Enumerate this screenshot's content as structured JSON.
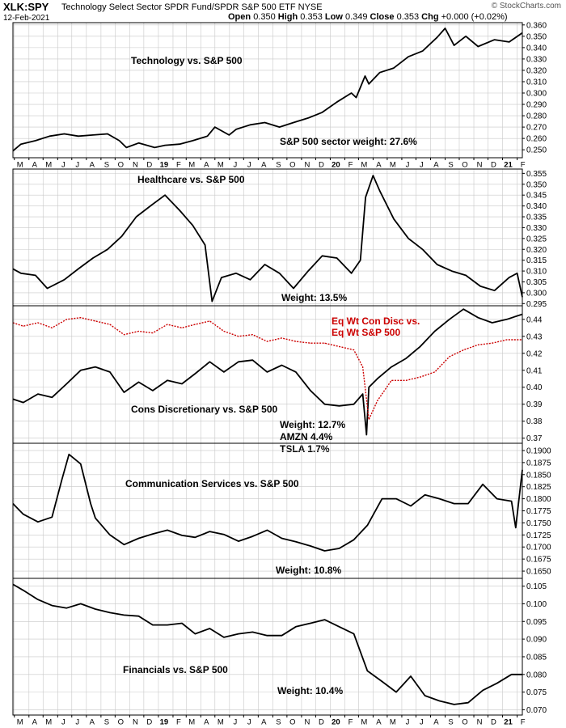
{
  "header": {
    "symbol": "XLK:SPY",
    "description": "Technology Select Sector SPDR Fund/SPDR S&P 500 ETF NYSE",
    "date": "12-Feb-2021",
    "open_label": "Open",
    "open": "0.350",
    "high_label": "High",
    "high": "0.353",
    "low_label": "Low",
    "low": "0.349",
    "close_label": "Close",
    "close": "0.353",
    "chg_label": "Chg",
    "chg": "+0.000 (+0.02%)",
    "brand": "© StockCharts.com"
  },
  "colors": {
    "line": "#000000",
    "secondary": "#cc0000",
    "grid": "#c8c8c8",
    "frame": "#000000"
  },
  "x_axis": {
    "ticks": [
      {
        "label": "M",
        "date": "2018-03"
      },
      {
        "label": "A",
        "date": "2018-04"
      },
      {
        "label": "M",
        "date": "2018-05"
      },
      {
        "label": "J",
        "date": "2018-06"
      },
      {
        "label": "J",
        "date": "2018-07"
      },
      {
        "label": "A",
        "date": "2018-08"
      },
      {
        "label": "S",
        "date": "2018-09"
      },
      {
        "label": "O",
        "date": "2018-10"
      },
      {
        "label": "N",
        "date": "2018-11"
      },
      {
        "label": "D",
        "date": "2018-12"
      },
      {
        "label": "19",
        "date": "2019-01",
        "bold": true
      },
      {
        "label": "F",
        "date": "2019-02"
      },
      {
        "label": "M",
        "date": "2019-03"
      },
      {
        "label": "A",
        "date": "2019-04"
      },
      {
        "label": "M",
        "date": "2019-05"
      },
      {
        "label": "J",
        "date": "2019-06"
      },
      {
        "label": "J",
        "date": "2019-07"
      },
      {
        "label": "A",
        "date": "2019-08"
      },
      {
        "label": "S",
        "date": "2019-09"
      },
      {
        "label": "O",
        "date": "2019-10"
      },
      {
        "label": "N",
        "date": "2019-11"
      },
      {
        "label": "D",
        "date": "2019-12"
      },
      {
        "label": "20",
        "date": "2020-01",
        "bold": true
      },
      {
        "label": "F",
        "date": "2020-02"
      },
      {
        "label": "M",
        "date": "2020-03"
      },
      {
        "label": "A",
        "date": "2020-04"
      },
      {
        "label": "M",
        "date": "2020-05"
      },
      {
        "label": "J",
        "date": "2020-06"
      },
      {
        "label": "J",
        "date": "2020-07"
      },
      {
        "label": "A",
        "date": "2020-08"
      },
      {
        "label": "S",
        "date": "2020-09"
      },
      {
        "label": "O",
        "date": "2020-10"
      },
      {
        "label": "N",
        "date": "2020-11"
      },
      {
        "label": "D",
        "date": "2020-12"
      },
      {
        "label": "21",
        "date": "2021-01",
        "bold": true
      },
      {
        "label": "F",
        "date": "2021-02"
      }
    ]
  },
  "chart_data": [
    {
      "type": "line",
      "title": "Technology vs. S&P 500",
      "annotations": [
        "S&P 500 sector weight: 27.6%"
      ],
      "ylim": [
        0.243,
        0.362
      ],
      "yticks": [
        "0.360",
        "0.350",
        "0.340",
        "0.330",
        "0.320",
        "0.310",
        "0.300",
        "0.290",
        "0.280",
        "0.270",
        "0.260",
        "0.250"
      ],
      "series": [
        {
          "color": "#000000",
          "x": [
            "2018-02-26",
            "2018-03-15",
            "2018-04-15",
            "2018-05-15",
            "2018-06-15",
            "2018-07-15",
            "2018-08-15",
            "2018-09-15",
            "2018-10-10",
            "2018-10-25",
            "2018-11-20",
            "2018-12-24",
            "2019-01-15",
            "2019-02-15",
            "2019-03-15",
            "2019-04-15",
            "2019-05-01",
            "2019-05-31",
            "2019-06-15",
            "2019-07-15",
            "2019-08-15",
            "2019-09-15",
            "2019-10-15",
            "2019-11-15",
            "2019-12-15",
            "2020-01-15",
            "2020-02-15",
            "2020-02-25",
            "2020-03-15",
            "2020-03-23",
            "2020-04-15",
            "2020-05-15",
            "2020-06-15",
            "2020-07-15",
            "2020-08-15",
            "2020-09-01",
            "2020-09-20",
            "2020-10-15",
            "2020-11-10",
            "2020-12-15",
            "2021-01-15",
            "2021-02-12"
          ],
          "values": [
            0.249,
            0.255,
            0.258,
            0.262,
            0.264,
            0.262,
            0.263,
            0.264,
            0.258,
            0.252,
            0.256,
            0.252,
            0.254,
            0.255,
            0.258,
            0.262,
            0.27,
            0.263,
            0.268,
            0.272,
            0.274,
            0.27,
            0.274,
            0.278,
            0.283,
            0.292,
            0.3,
            0.296,
            0.315,
            0.308,
            0.318,
            0.322,
            0.332,
            0.337,
            0.349,
            0.357,
            0.342,
            0.35,
            0.341,
            0.347,
            0.345,
            0.353
          ]
        }
      ]
    },
    {
      "type": "line",
      "title": "Healthcare vs. S&P 500",
      "annotations": [
        "Weight: 13.5%"
      ],
      "ylim": [
        0.294,
        0.357
      ],
      "yticks": [
        "0.355",
        "0.350",
        "0.345",
        "0.340",
        "0.335",
        "0.330",
        "0.325",
        "0.320",
        "0.315",
        "0.310",
        "0.305",
        "0.300",
        "0.295"
      ],
      "series": [
        {
          "color": "#000000",
          "x": [
            "2018-02-26",
            "2018-03-15",
            "2018-04-15",
            "2018-05-10",
            "2018-06-15",
            "2018-07-15",
            "2018-08-15",
            "2018-09-15",
            "2018-10-15",
            "2018-11-15",
            "2018-12-15",
            "2019-01-15",
            "2019-02-15",
            "2019-03-15",
            "2019-04-10",
            "2019-04-25",
            "2019-05-15",
            "2019-06-15",
            "2019-07-15",
            "2019-08-15",
            "2019-09-15",
            "2019-10-15",
            "2019-11-15",
            "2019-12-15",
            "2020-01-15",
            "2020-02-15",
            "2020-03-05",
            "2020-03-16",
            "2020-04-01",
            "2020-04-15",
            "2020-05-15",
            "2020-06-15",
            "2020-07-15",
            "2020-08-15",
            "2020-09-15",
            "2020-10-15",
            "2020-11-15",
            "2020-12-15",
            "2021-01-15",
            "2021-02-01",
            "2021-02-12"
          ],
          "values": [
            0.311,
            0.309,
            0.308,
            0.302,
            0.306,
            0.311,
            0.316,
            0.32,
            0.326,
            0.335,
            0.34,
            0.345,
            0.338,
            0.331,
            0.322,
            0.296,
            0.307,
            0.309,
            0.306,
            0.313,
            0.309,
            0.302,
            0.31,
            0.317,
            0.316,
            0.309,
            0.315,
            0.344,
            0.354,
            0.347,
            0.334,
            0.325,
            0.32,
            0.313,
            0.31,
            0.308,
            0.303,
            0.301,
            0.307,
            0.309,
            0.298
          ]
        }
      ]
    },
    {
      "type": "line",
      "title": "Cons Discretionary vs. S&P 500",
      "annotations": [
        "Weight: 12.7%",
        "AMZN 4.4%",
        "TSLA 1.7%",
        "Eq Wt Con Disc vs.",
        "Eq Wt S&P 500"
      ],
      "ylim": [
        0.367,
        0.448
      ],
      "yticks": [
        "0.44",
        "0.43",
        "0.42",
        "0.41",
        "0.40",
        "0.39",
        "0.38",
        "0.37"
      ],
      "series": [
        {
          "name": "Cons Discretionary vs. S&P 500",
          "color": "#000000",
          "x": [
            "2018-02-26",
            "2018-03-20",
            "2018-04-20",
            "2018-05-20",
            "2018-06-20",
            "2018-07-20",
            "2018-08-20",
            "2018-09-20",
            "2018-10-20",
            "2018-11-20",
            "2018-12-20",
            "2019-01-20",
            "2019-02-20",
            "2019-03-20",
            "2019-04-20",
            "2019-05-20",
            "2019-06-20",
            "2019-07-20",
            "2019-08-20",
            "2019-09-20",
            "2019-10-20",
            "2019-11-20",
            "2019-12-20",
            "2020-01-20",
            "2020-02-20",
            "2020-03-10",
            "2020-03-18",
            "2020-03-23",
            "2020-04-10",
            "2020-05-10",
            "2020-06-10",
            "2020-07-10",
            "2020-08-10",
            "2020-09-10",
            "2020-10-10",
            "2020-11-10",
            "2020-12-10",
            "2021-01-10",
            "2021-02-12"
          ],
          "values": [
            0.393,
            0.391,
            0.396,
            0.394,
            0.402,
            0.41,
            0.412,
            0.409,
            0.397,
            0.403,
            0.398,
            0.404,
            0.402,
            0.408,
            0.415,
            0.409,
            0.415,
            0.416,
            0.409,
            0.413,
            0.409,
            0.398,
            0.39,
            0.389,
            0.39,
            0.396,
            0.372,
            0.4,
            0.405,
            0.412,
            0.417,
            0.424,
            0.433,
            0.44,
            0.446,
            0.441,
            0.438,
            0.44,
            0.443
          ]
        },
        {
          "name": "Eq Wt Con Disc vs. Eq Wt S&P 500",
          "color": "#cc0000",
          "x": [
            "2018-02-26",
            "2018-03-20",
            "2018-04-20",
            "2018-05-20",
            "2018-06-20",
            "2018-07-20",
            "2018-08-20",
            "2018-09-20",
            "2018-10-20",
            "2018-11-20",
            "2018-12-20",
            "2019-01-20",
            "2019-02-20",
            "2019-03-20",
            "2019-04-20",
            "2019-05-20",
            "2019-06-20",
            "2019-07-20",
            "2019-08-20",
            "2019-09-20",
            "2019-10-20",
            "2019-11-20",
            "2019-12-20",
            "2020-01-20",
            "2020-02-20",
            "2020-03-10",
            "2020-03-23",
            "2020-04-10",
            "2020-05-10",
            "2020-06-10",
            "2020-07-10",
            "2020-08-10",
            "2020-09-10",
            "2020-10-10",
            "2020-11-10",
            "2020-12-10",
            "2021-01-10",
            "2021-02-12"
          ],
          "values": [
            0.438,
            0.436,
            0.438,
            0.435,
            0.44,
            0.441,
            0.439,
            0.437,
            0.431,
            0.433,
            0.432,
            0.437,
            0.435,
            0.437,
            0.439,
            0.433,
            0.43,
            0.431,
            0.427,
            0.429,
            0.427,
            0.426,
            0.426,
            0.424,
            0.422,
            0.412,
            0.381,
            0.392,
            0.404,
            0.404,
            0.406,
            0.409,
            0.418,
            0.422,
            0.425,
            0.426,
            0.428,
            0.428
          ]
        }
      ]
    },
    {
      "type": "line",
      "title": "Communication Services vs. S&P 500",
      "annotations": [
        "Weight: 10.8%"
      ],
      "ylim": [
        0.1635,
        0.1915
      ],
      "yticks": [
        "0.1900",
        "0.1875",
        "0.1850",
        "0.1825",
        "0.1800",
        "0.1775",
        "0.1750",
        "0.1725",
        "0.1700",
        "0.1675",
        "0.1650"
      ],
      "series": [
        {
          "color": "#000000",
          "x": [
            "2018-02-26",
            "2018-03-20",
            "2018-04-20",
            "2018-05-20",
            "2018-06-10",
            "2018-06-25",
            "2018-07-20",
            "2018-08-10",
            "2018-08-20",
            "2018-09-20",
            "2018-10-20",
            "2018-11-20",
            "2018-12-20",
            "2019-01-20",
            "2019-02-20",
            "2019-03-20",
            "2019-04-20",
            "2019-05-20",
            "2019-06-20",
            "2019-07-20",
            "2019-08-20",
            "2019-09-20",
            "2019-10-20",
            "2019-11-20",
            "2019-12-20",
            "2020-01-20",
            "2020-02-20",
            "2020-03-20",
            "2020-04-20",
            "2020-05-20",
            "2020-06-20",
            "2020-07-20",
            "2020-08-20",
            "2020-09-20",
            "2020-10-20",
            "2020-11-20",
            "2020-12-20",
            "2021-01-20",
            "2021-01-29",
            "2021-02-12"
          ],
          "values": [
            0.179,
            0.1768,
            0.1752,
            0.1762,
            0.184,
            0.1892,
            0.1872,
            0.179,
            0.176,
            0.1725,
            0.1705,
            0.1718,
            0.1727,
            0.1735,
            0.1724,
            0.172,
            0.1732,
            0.1726,
            0.1712,
            0.1722,
            0.1735,
            0.1718,
            0.1711,
            0.1702,
            0.1692,
            0.1697,
            0.1715,
            0.1745,
            0.18,
            0.18,
            0.1785,
            0.1808,
            0.18,
            0.179,
            0.179,
            0.183,
            0.18,
            0.1795,
            0.174,
            0.186
          ]
        }
      ]
    },
    {
      "type": "line",
      "title": "Financials vs. S&P 500",
      "annotations": [
        "Weight: 10.4%"
      ],
      "ylim": [
        0.0685,
        0.1072
      ],
      "yticks": [
        "0.105",
        "0.100",
        "0.095",
        "0.090",
        "0.085",
        "0.080",
        "0.075",
        "0.070"
      ],
      "series": [
        {
          "color": "#000000",
          "x": [
            "2018-02-26",
            "2018-03-20",
            "2018-04-20",
            "2018-05-20",
            "2018-06-20",
            "2018-07-20",
            "2018-08-20",
            "2018-09-20",
            "2018-10-20",
            "2018-11-20",
            "2018-12-20",
            "2019-01-20",
            "2019-02-20",
            "2019-03-20",
            "2019-04-20",
            "2019-05-20",
            "2019-06-20",
            "2019-07-20",
            "2019-08-20",
            "2019-09-20",
            "2019-10-20",
            "2019-11-20",
            "2019-12-20",
            "2020-01-20",
            "2020-02-20",
            "2020-03-20",
            "2020-04-20",
            "2020-05-20",
            "2020-06-20",
            "2020-07-20",
            "2020-08-20",
            "2020-09-20",
            "2020-10-20",
            "2020-11-20",
            "2020-12-20",
            "2021-01-20",
            "2021-02-12"
          ],
          "values": [
            0.1055,
            0.1038,
            0.1012,
            0.0995,
            0.0988,
            0.1,
            0.0985,
            0.0975,
            0.0968,
            0.0965,
            0.094,
            0.094,
            0.0945,
            0.0915,
            0.093,
            0.0905,
            0.0915,
            0.092,
            0.091,
            0.091,
            0.0935,
            0.0945,
            0.0955,
            0.0935,
            0.0915,
            0.081,
            0.078,
            0.075,
            0.0795,
            0.074,
            0.0725,
            0.0715,
            0.072,
            0.0755,
            0.0775,
            0.08,
            0.08
          ]
        }
      ]
    }
  ]
}
